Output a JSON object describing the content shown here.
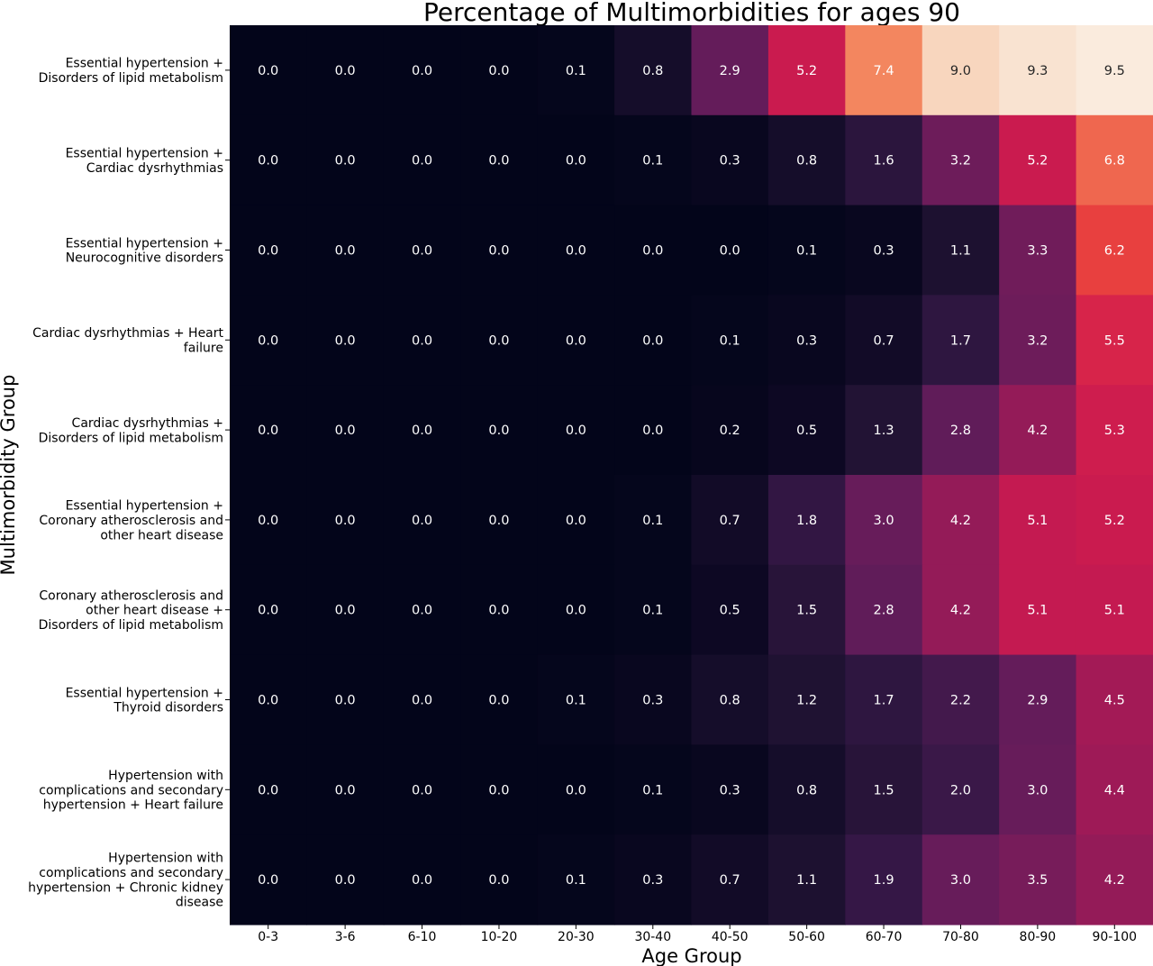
{
  "chart_data": {
    "type": "heatmap",
    "title": "Percentage of Multimorbidities for ages 90",
    "xlabel": "Age Group",
    "ylabel": "Multimorbidity  Group",
    "x_categories": [
      "0-3",
      "3-6",
      "6-10",
      "10-20",
      "20-30",
      "30-40",
      "40-50",
      "50-60",
      "60-70",
      "70-80",
      "80-90",
      "90-100"
    ],
    "y_categories": [
      [
        "Essential hypertension +",
        "Disorders of lipid metabolism"
      ],
      [
        "Essential hypertension +",
        "Cardiac dysrhythmias"
      ],
      [
        "Essential hypertension +",
        "Neurocognitive disorders"
      ],
      [
        "Cardiac dysrhythmias + Heart",
        "failure"
      ],
      [
        "Cardiac dysrhythmias +",
        "Disorders of lipid metabolism"
      ],
      [
        "Essential hypertension +",
        "Coronary atherosclerosis and",
        "other heart disease"
      ],
      [
        "Coronary atherosclerosis and",
        "other heart disease +",
        "Disorders of lipid metabolism"
      ],
      [
        "Essential hypertension +",
        "Thyroid disorders"
      ],
      [
        "Hypertension with",
        "complications and secondary",
        "hypertension + Heart failure"
      ],
      [
        "Hypertension with",
        "complications and secondary",
        "hypertension + Chronic kidney",
        "disease"
      ]
    ],
    "values": [
      [
        0.0,
        0.0,
        0.0,
        0.0,
        0.1,
        0.8,
        2.9,
        5.2,
        7.4,
        9.0,
        9.3,
        9.5
      ],
      [
        0.0,
        0.0,
        0.0,
        0.0,
        0.0,
        0.1,
        0.3,
        0.8,
        1.6,
        3.2,
        5.2,
        6.8
      ],
      [
        0.0,
        0.0,
        0.0,
        0.0,
        0.0,
        0.0,
        0.0,
        0.1,
        0.3,
        1.1,
        3.3,
        6.2
      ],
      [
        0.0,
        0.0,
        0.0,
        0.0,
        0.0,
        0.0,
        0.1,
        0.3,
        0.7,
        1.7,
        3.2,
        5.5
      ],
      [
        0.0,
        0.0,
        0.0,
        0.0,
        0.0,
        0.0,
        0.2,
        0.5,
        1.3,
        2.8,
        4.2,
        5.3
      ],
      [
        0.0,
        0.0,
        0.0,
        0.0,
        0.0,
        0.1,
        0.7,
        1.8,
        3.0,
        4.2,
        5.1,
        5.2
      ],
      [
        0.0,
        0.0,
        0.0,
        0.0,
        0.0,
        0.1,
        0.5,
        1.5,
        2.8,
        4.2,
        5.1,
        5.1
      ],
      [
        0.0,
        0.0,
        0.0,
        0.0,
        0.1,
        0.3,
        0.8,
        1.2,
        1.7,
        2.2,
        2.9,
        4.5
      ],
      [
        0.0,
        0.0,
        0.0,
        0.0,
        0.0,
        0.1,
        0.3,
        0.8,
        1.5,
        2.0,
        3.0,
        4.4
      ],
      [
        0.0,
        0.0,
        0.0,
        0.0,
        0.1,
        0.3,
        0.7,
        1.1,
        1.9,
        3.0,
        3.5,
        4.2
      ]
    ],
    "color_range": [
      0,
      9.5
    ],
    "colormap": "rocket",
    "grid": false,
    "legend": "none"
  }
}
